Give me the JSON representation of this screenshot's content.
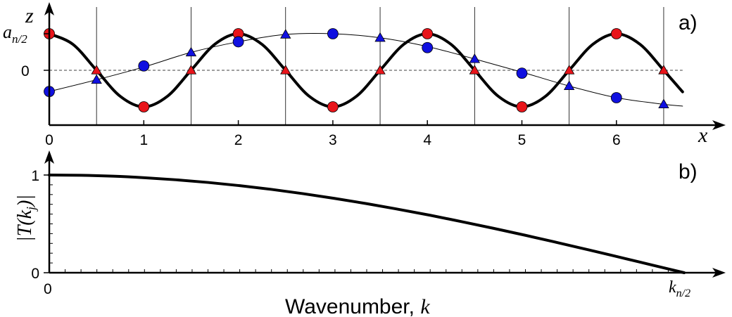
{
  "chart_data": [
    {
      "panel_label": "a)",
      "type": "line",
      "x_axis_label": "x",
      "y_axis_label": "z",
      "x_ticks": [
        "0",
        "1",
        "2",
        "3",
        "4",
        "5",
        "6"
      ],
      "y_tick_zero": "0",
      "y_tick_amp_base": "a",
      "y_tick_amp_sub": "n/2",
      "xlim": [
        0,
        6.7
      ],
      "ylim": [
        -1.45,
        1.85
      ],
      "vertical_lines_x": [
        0.5,
        1.5,
        2.5,
        3.5,
        4.5,
        5.5,
        6.5
      ],
      "zero_line": "dashed",
      "series": [
        {
          "curve": "nyquist cosine",
          "color": "#000000",
          "x": [
            0,
            0.25,
            0.5,
            0.75,
            1,
            1.25,
            1.5,
            1.75,
            2,
            2.25,
            2.5,
            2.75,
            3,
            3.25,
            3.5,
            3.75,
            4,
            4.25,
            4.5,
            4.75,
            5,
            5.25,
            5.5,
            5.75,
            6,
            6.25,
            6.5,
            6.7
          ],
          "y": [
            1,
            0.71,
            0,
            -0.71,
            -1,
            -0.71,
            0,
            0.71,
            1,
            0.71,
            0,
            -0.71,
            -1,
            -0.71,
            0,
            0.71,
            1,
            0.71,
            0,
            -0.71,
            -1,
            -0.71,
            0,
            0.71,
            1,
            0.71,
            0,
            -0.59
          ]
        },
        {
          "curve": "smooth",
          "color": "#000000",
          "x": [
            0,
            0.5,
            1,
            1.5,
            2,
            2.5,
            3,
            3.5,
            4,
            4.5,
            5,
            5.5,
            6,
            6.5,
            6.7
          ],
          "y": [
            -0.58,
            -0.26,
            0.09,
            0.49,
            0.78,
            0.98,
            1.0,
            0.89,
            0.65,
            0.31,
            -0.05,
            -0.43,
            -0.75,
            -0.93,
            -0.98
          ]
        },
        {
          "marker": "circle",
          "color": "#e8141a",
          "x": [
            0,
            1,
            2,
            3,
            4,
            5,
            6
          ],
          "y": [
            1,
            -1,
            1,
            -1,
            1,
            -1,
            1
          ]
        },
        {
          "marker": "triangle",
          "color": "#e8141a",
          "x": [
            0.5,
            1.5,
            2.5,
            3.5,
            4.5,
            5.5,
            6.5
          ],
          "y": [
            0,
            0,
            0,
            0,
            0,
            0,
            0
          ]
        },
        {
          "marker": "circle",
          "color": "#1010e0",
          "x": [
            0,
            1,
            2,
            3,
            5,
            6
          ],
          "y": [
            -0.58,
            0.12,
            0.78,
            1.0,
            -0.08,
            -0.75
          ]
        },
        {
          "marker": "circle",
          "color": "#1010e0",
          "x": [
            4
          ],
          "y": [
            0.62
          ]
        },
        {
          "marker": "triangle",
          "color": "#1010e0",
          "x": [
            0.5,
            1.5,
            2.5,
            3.5,
            4.5,
            5.5,
            6.5
          ],
          "y": [
            -0.26,
            0.49,
            0.98,
            0.89,
            0.31,
            -0.43,
            -0.93
          ]
        }
      ]
    },
    {
      "panel_label": "b)",
      "type": "line",
      "x_axis_label_text": "Wavenumber, ",
      "x_axis_label_var": "k",
      "x_tick_zero": "0",
      "x_tick_end_base": "k",
      "x_tick_end_sub": "n/2",
      "y_ticks": [
        "0",
        "1"
      ],
      "y_axis_label_left": "|T(k",
      "y_axis_label_sub": "j",
      "y_axis_label_right": ")|",
      "xlim": [
        0,
        1
      ],
      "ylim": [
        0,
        1
      ],
      "series": [
        {
          "color": "#000000",
          "x": [
            0,
            0.05,
            0.1,
            0.15,
            0.2,
            0.25,
            0.3,
            0.35,
            0.4,
            0.45,
            0.5,
            0.55,
            0.6,
            0.65,
            0.7,
            0.75,
            0.8,
            0.85,
            0.9,
            0.95,
            1.0
          ],
          "y": [
            1.0,
            0.997,
            0.988,
            0.972,
            0.951,
            0.924,
            0.891,
            0.853,
            0.809,
            0.76,
            0.707,
            0.649,
            0.588,
            0.522,
            0.454,
            0.383,
            0.309,
            0.233,
            0.156,
            0.078,
            0.0
          ]
        }
      ]
    }
  ]
}
